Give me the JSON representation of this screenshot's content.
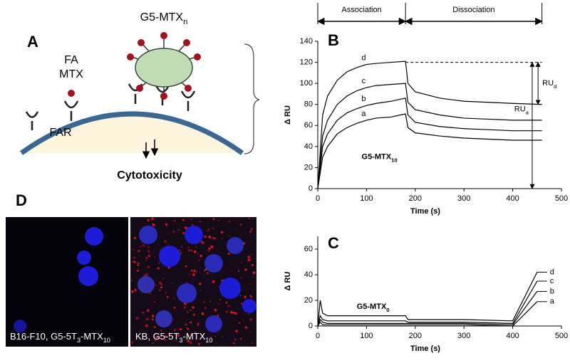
{
  "panels": {
    "a": "A",
    "b": "B",
    "c": "C",
    "d": "D"
  },
  "diagram": {
    "conjugate": {
      "parts": [
        "G5-MTX",
        "n"
      ]
    },
    "ligand": "FA",
    "drug": "MTX",
    "receptor": "FAR",
    "outcome": "Cytotoxicity"
  },
  "chart_data": [
    {
      "type": "line",
      "x_label": "Time (s)",
      "y_label": "Δ RU",
      "annotation": {
        "parts": [
          "G5-MTX",
          "10"
        ],
        "x": 90,
        "y": 30
      },
      "phases": [
        {
          "label": "Association",
          "from": 0,
          "to": 180
        },
        {
          "label": "Dissociation",
          "from": 180,
          "to": 460
        }
      ],
      "reference_line": {
        "value": 120,
        "from": 180,
        "to": 460
      },
      "ru_arrows": [
        {
          "parts": [
            "RU",
            "a"
          ],
          "x": 440,
          "from": 0,
          "to": 120
        },
        {
          "parts": [
            "RU",
            "d"
          ],
          "x": 452,
          "from": 80,
          "to": 120
        }
      ],
      "x": [
        0,
        10,
        20,
        40,
        60,
        80,
        100,
        120,
        150,
        180,
        185,
        200,
        250,
        300,
        350,
        400,
        460
      ],
      "series": [
        {
          "name": "d",
          "color": "#000000",
          "values": [
            0,
            70,
            88,
            103,
            111,
            115,
            118,
            119,
            120,
            121,
            100,
            92,
            86,
            83,
            82,
            81,
            80
          ]
        },
        {
          "name": "c",
          "color": "#000000",
          "values": [
            0,
            50,
            65,
            80,
            88,
            93,
            96,
            98,
            99,
            100,
            82,
            75,
            70,
            67,
            66,
            65,
            65
          ]
        },
        {
          "name": "b",
          "color": "#000000",
          "values": [
            0,
            40,
            52,
            65,
            72,
            76,
            79,
            81,
            83,
            86,
            70,
            63,
            59,
            57,
            56,
            55,
            55
          ]
        },
        {
          "name": "a",
          "color": "#000000",
          "values": [
            0,
            30,
            40,
            52,
            58,
            62,
            65,
            67,
            68,
            71,
            58,
            53,
            50,
            48,
            47,
            46,
            46
          ]
        }
      ],
      "xlim": [
        0,
        500
      ],
      "xticks": [
        0,
        100,
        200,
        300,
        400,
        500
      ],
      "ylim": [
        0,
        140
      ],
      "yticks": [
        0,
        20,
        40,
        60,
        80,
        100,
        120,
        140
      ]
    },
    {
      "type": "line",
      "x_label": "Time (s)",
      "y_label": "Δ RU",
      "annotation": {
        "parts": [
          "G5-MTX",
          "0"
        ],
        "x": 80,
        "y": 15
      },
      "x": [
        0,
        5,
        10,
        20,
        100,
        180,
        185,
        300,
        400,
        450
      ],
      "series": [
        {
          "name": "d",
          "color": "#000000",
          "values": [
            0,
            20,
            10,
            8,
            8,
            8,
            5,
            5,
            4,
            42
          ]
        },
        {
          "name": "c",
          "color": "#000000",
          "values": [
            0,
            8,
            5,
            4,
            4,
            4,
            3,
            3,
            2,
            35
          ]
        },
        {
          "name": "b",
          "color": "#000000",
          "values": [
            0,
            5,
            3,
            2,
            2,
            2,
            2,
            2,
            1,
            27
          ]
        },
        {
          "name": "a",
          "color": "#000000",
          "values": [
            0,
            3,
            1,
            1,
            1,
            1,
            1,
            1,
            0,
            19
          ]
        }
      ],
      "xlim": [
        0,
        500
      ],
      "xticks": [
        0,
        100,
        200,
        300,
        400,
        500
      ],
      "ylim": [
        0,
        70
      ],
      "yticks": [
        0,
        20,
        40,
        60
      ]
    }
  ],
  "images": [
    {
      "caption": {
        "parts": [
          "B16-F10, G5-5T",
          "3",
          "-MTX",
          "10"
        ]
      }
    },
    {
      "caption": {
        "parts": [
          "KB, G5-5T",
          "3",
          "-MTX",
          "10"
        ]
      }
    }
  ]
}
